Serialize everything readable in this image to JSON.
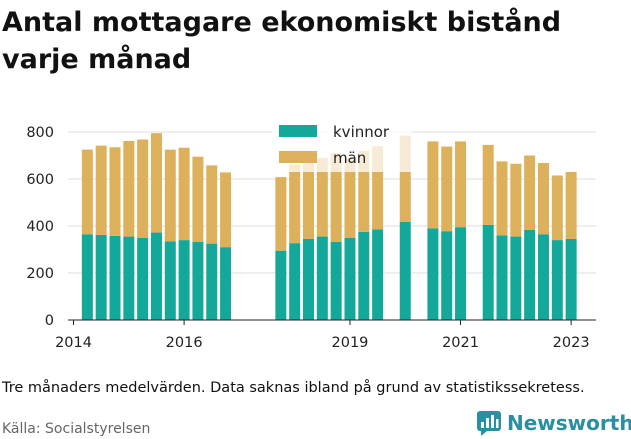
{
  "title": "Antal mottagare ekonomiskt bistånd varje månad",
  "note": "Tre månaders medelvärden. Data saknas ibland på grund av statistikssekretess.",
  "source": "Källa: Socialstyrelsen",
  "brand": {
    "name": "Newsworthy",
    "color": "#2a8fa1"
  },
  "chart_data": {
    "type": "bar",
    "stacked": true,
    "x_ticks": [
      "2014",
      "2016",
      "2019",
      "2021",
      "2023"
    ],
    "x_tick_values": [
      2014,
      2016,
      2019,
      2021,
      2023
    ],
    "ylim": [
      0,
      800
    ],
    "y_ticks": [
      0,
      200,
      400,
      600,
      800
    ],
    "grid": true,
    "legend_position": "top-center",
    "series": [
      {
        "name": "kvinnor",
        "color": "#14a89a"
      },
      {
        "name": "män",
        "color": "#ddb05c"
      }
    ],
    "bars": [
      {
        "x": 2014.25,
        "kvinnor": 365,
        "man": 360
      },
      {
        "x": 2014.5,
        "kvinnor": 362,
        "man": 380
      },
      {
        "x": 2014.75,
        "kvinnor": 358,
        "man": 377
      },
      {
        "x": 2015.0,
        "kvinnor": 355,
        "man": 407
      },
      {
        "x": 2015.25,
        "kvinnor": 350,
        "man": 418
      },
      {
        "x": 2015.5,
        "kvinnor": 372,
        "man": 423
      },
      {
        "x": 2015.75,
        "kvinnor": 335,
        "man": 390
      },
      {
        "x": 2016.0,
        "kvinnor": 340,
        "man": 393
      },
      {
        "x": 2016.25,
        "kvinnor": 333,
        "man": 362
      },
      {
        "x": 2016.5,
        "kvinnor": 325,
        "man": 333
      },
      {
        "x": 2016.75,
        "kvinnor": 310,
        "man": 318
      },
      {
        "x": 2017.75,
        "kvinnor": 295,
        "man": 313
      },
      {
        "x": 2018.0,
        "kvinnor": 327,
        "man": 335
      },
      {
        "x": 2018.25,
        "kvinnor": 345,
        "man": 340
      },
      {
        "x": 2018.5,
        "kvinnor": 355,
        "man": 335
      },
      {
        "x": 2018.75,
        "kvinnor": 333,
        "man": 377
      },
      {
        "x": 2019.0,
        "kvinnor": 350,
        "man": 340
      },
      {
        "x": 2019.25,
        "kvinnor": 375,
        "man": 345
      },
      {
        "x": 2019.5,
        "kvinnor": 385,
        "man": 355
      },
      {
        "x": 2020.0,
        "kvinnor": 418,
        "man": 367
      },
      {
        "x": 2020.5,
        "kvinnor": 390,
        "man": 370
      },
      {
        "x": 2020.75,
        "kvinnor": 378,
        "man": 360
      },
      {
        "x": 2021.0,
        "kvinnor": 395,
        "man": 365
      },
      {
        "x": 2021.5,
        "kvinnor": 405,
        "man": 340
      },
      {
        "x": 2021.75,
        "kvinnor": 360,
        "man": 315
      },
      {
        "x": 2022.0,
        "kvinnor": 355,
        "man": 310
      },
      {
        "x": 2022.25,
        "kvinnor": 383,
        "man": 317
      },
      {
        "x": 2022.5,
        "kvinnor": 365,
        "man": 303
      },
      {
        "x": 2022.75,
        "kvinnor": 340,
        "man": 275
      },
      {
        "x": 2023.0,
        "kvinnor": 345,
        "man": 285
      }
    ]
  }
}
